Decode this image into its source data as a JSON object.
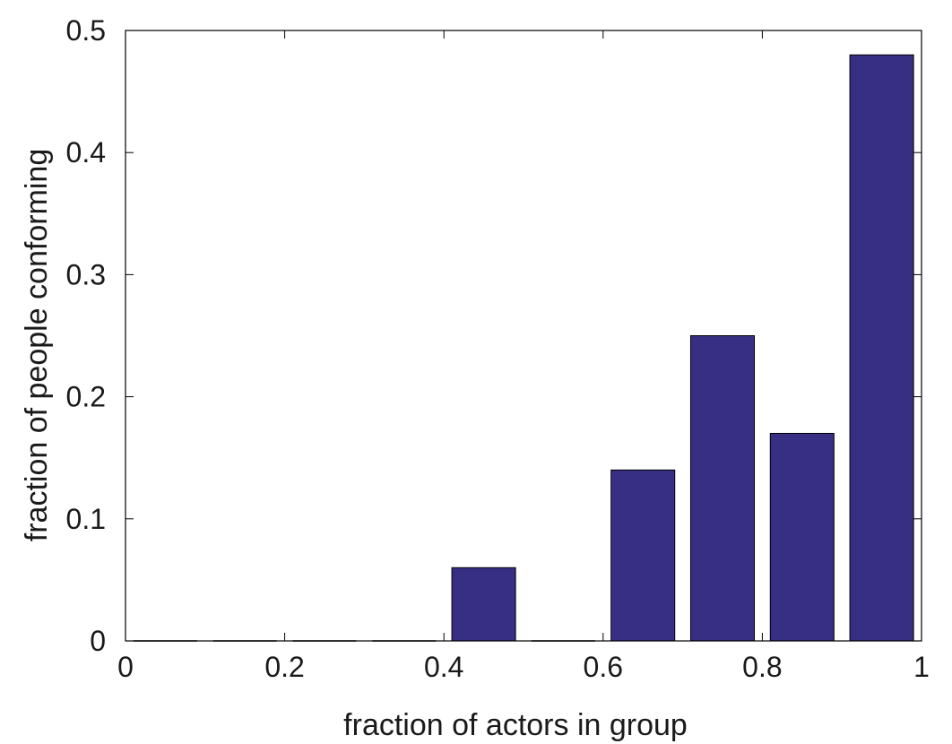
{
  "chart_data": {
    "type": "bar",
    "title": "",
    "xlabel": "fraction of actors in group",
    "ylabel": "fraction of people conforming",
    "x": [
      0.05,
      0.15,
      0.25,
      0.35,
      0.45,
      0.55,
      0.65,
      0.75,
      0.85,
      0.95
    ],
    "values": [
      0,
      0,
      0,
      0,
      0.06,
      0,
      0.14,
      0.25,
      0.17,
      0.48
    ],
    "xlim": [
      0,
      1
    ],
    "ylim": [
      0,
      0.5
    ],
    "xticks": [
      "0",
      "0.2",
      "0.4",
      "0.6",
      "0.8",
      "1"
    ],
    "yticks": [
      "0",
      "0.1",
      "0.2",
      "0.3",
      "0.4",
      "0.5"
    ],
    "bar_color": "#372f83",
    "grid": false,
    "legend": "none"
  }
}
